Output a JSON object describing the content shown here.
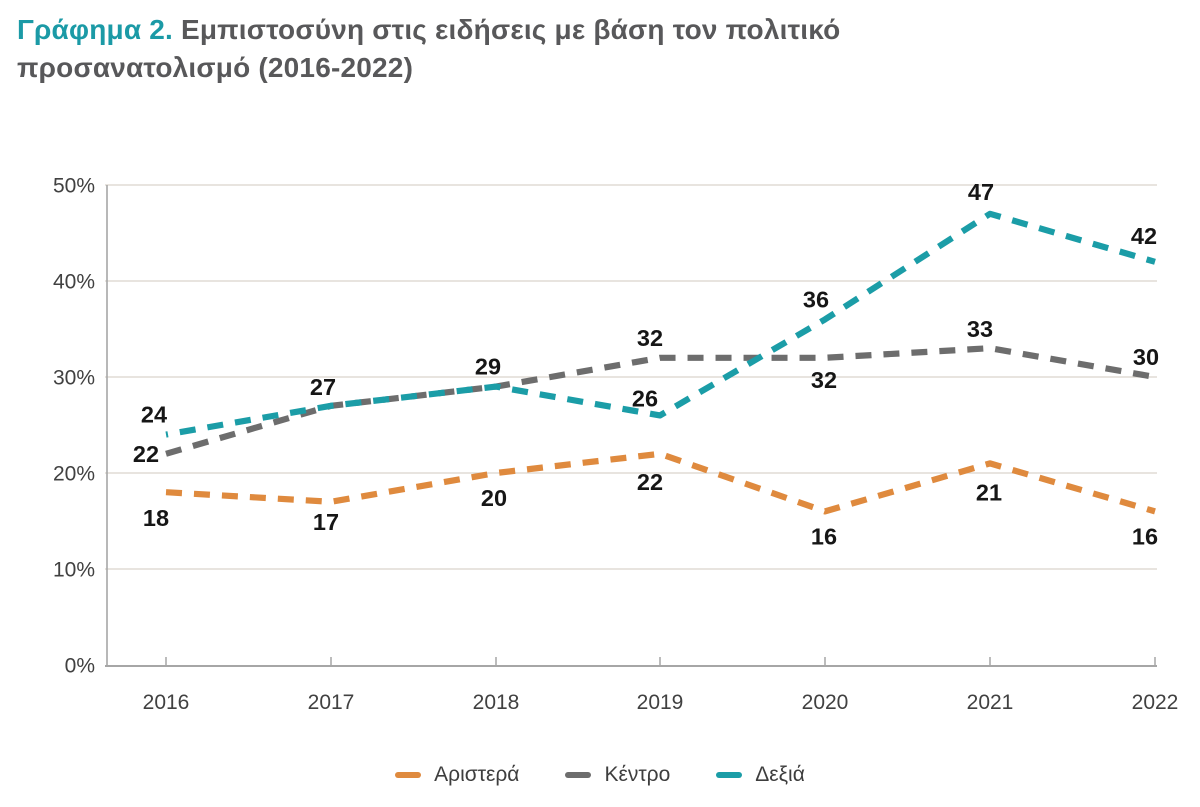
{
  "title": {
    "prefix": "Γράφημα 2.",
    "line1": " Εμπιστοσύνη στις ειδήσεις με βάση τον πολιτικό",
    "line2": "προσανατολισμό (2016-2022)"
  },
  "colors": {
    "accent_teal": "#1b9da7",
    "orange": "#df8a3e",
    "gray_line": "#6d6d6d",
    "grid": "#d9d4cc",
    "axis": "#a6a6a6",
    "data_label": "#161616",
    "tick_text": "#414141",
    "title_gray": "#58585a",
    "title_teal": "#1b9aa6"
  },
  "chart_data": {
    "type": "line",
    "title": "Εμπιστοσύνη στις ειδήσεις με βάση τον πολιτικό προσανατολισμό (2016-2022)",
    "categories": [
      "2016",
      "2017",
      "2018",
      "2019",
      "2020",
      "2021",
      "2022"
    ],
    "series": [
      {
        "name": "Αριστερά",
        "color": "#df8a3e",
        "values": [
          18,
          17,
          20,
          22,
          16,
          21,
          16
        ],
        "labels": [
          18,
          17,
          20,
          22,
          16,
          21,
          16
        ],
        "label_offsets": [
          [
            -10,
            26
          ],
          [
            -5,
            20
          ],
          [
            -2,
            25
          ],
          [
            -10,
            28
          ],
          [
            -1,
            25
          ],
          [
            -1,
            29
          ],
          [
            -10,
            25
          ]
        ],
        "dash_offset": 0
      },
      {
        "name": "Κέντρο",
        "color": "#6d6d6d",
        "values": [
          22,
          27,
          29,
          32,
          32,
          33,
          30
        ],
        "labels": [
          22,
          null,
          null,
          32,
          32,
          33,
          30
        ],
        "label_offsets": [
          [
            -20,
            0
          ],
          null,
          null,
          [
            -10,
            -20
          ],
          [
            -1,
            22
          ],
          [
            -10,
            -19
          ],
          [
            -9,
            -20
          ]
        ],
        "dash_offset": 0
      },
      {
        "name": "Δεξιά",
        "color": "#1b9da7",
        "values": [
          24,
          27,
          29,
          26,
          36,
          47,
          42
        ],
        "labels": [
          24,
          27,
          29,
          26,
          36,
          47,
          42
        ],
        "label_offsets": [
          [
            -12,
            -20
          ],
          [
            -8,
            -19
          ],
          [
            -8,
            -20
          ],
          [
            -15,
            -17
          ],
          [
            -9,
            -20
          ],
          [
            -9,
            -22
          ],
          [
            -11,
            -26
          ]
        ],
        "dash_offset": 14
      }
    ],
    "ylim": [
      0,
      50
    ],
    "yticks": [
      0,
      10,
      20,
      30,
      40,
      50
    ],
    "ytick_labels": [
      "0%",
      "10%",
      "20%",
      "30%",
      "40%",
      "50%"
    ],
    "grid": true,
    "line_style": "dashed",
    "legend_position": "bottom"
  },
  "legend": {
    "items": [
      {
        "label": "Αριστερά",
        "color": "#df8a3e"
      },
      {
        "label": "Κέντρο",
        "color": "#6d6d6d"
      },
      {
        "label": "Δεξιά",
        "color": "#1b9da7"
      }
    ]
  }
}
